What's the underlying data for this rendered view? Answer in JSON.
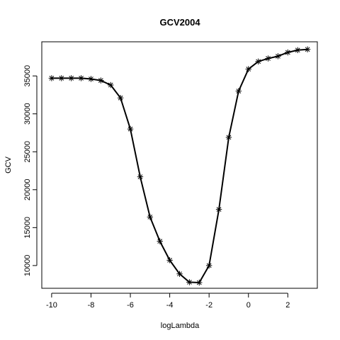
{
  "chart_data": {
    "type": "line",
    "title": "GCV2004",
    "xlabel": "logLambda",
    "ylabel": "GCV",
    "xlim": [
      -10.5,
      3.5
    ],
    "ylim": [
      7000,
      39500
    ],
    "x_ticks": [
      -10,
      -8,
      -6,
      -4,
      -2,
      0,
      2
    ],
    "y_ticks": [
      10000,
      15000,
      20000,
      25000,
      30000,
      35000
    ],
    "grid": false,
    "marker": "asterisk",
    "color": "#000000",
    "series": [
      {
        "x": [
          -10,
          -9.5,
          -9,
          -8.5,
          -8,
          -7.5,
          -7,
          -6.5,
          -6,
          -5.5,
          -5,
          -4.5,
          -4,
          -3.5,
          -3,
          -2.5,
          -2,
          -1.5,
          -1,
          -0.5,
          0,
          0.5,
          1,
          1.5,
          2,
          2.5,
          3
        ],
        "y": [
          34700,
          34700,
          34700,
          34700,
          34600,
          34400,
          33800,
          32100,
          28000,
          21700,
          16400,
          13200,
          10700,
          8900,
          7800,
          7750,
          10000,
          17400,
          26900,
          33000,
          35900,
          36900,
          37300,
          37600,
          38100,
          38400,
          38500
        ]
      }
    ]
  }
}
